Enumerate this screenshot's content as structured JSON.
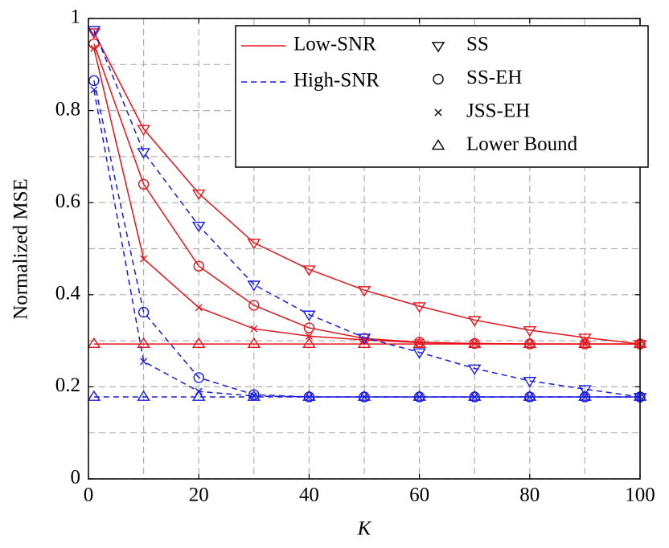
{
  "chart_data": {
    "type": "line",
    "xlabel": "K",
    "ylabel": "Normalized MSE",
    "x": [
      1,
      10,
      20,
      30,
      40,
      50,
      60,
      70,
      80,
      90,
      100
    ],
    "xlim": [
      0,
      100
    ],
    "ylim": [
      0,
      1
    ],
    "xticks": [
      0,
      20,
      40,
      60,
      80,
      100
    ],
    "yticks": [
      0,
      0.2,
      0.4,
      0.6,
      0.8,
      1
    ],
    "grid": true,
    "minor_xticks": [
      10,
      30,
      50,
      70,
      90
    ],
    "minor_yticks": [
      0.1,
      0.3,
      0.5,
      0.7,
      0.9
    ],
    "legend": {
      "lines": [
        {
          "name": "Low-SNR",
          "color": "#e8141b",
          "dashed": false
        },
        {
          "name": "High-SNR",
          "color": "#1a1ae6",
          "dashed": true
        }
      ],
      "markers": [
        {
          "name": "SS",
          "marker": "triangle-down"
        },
        {
          "name": "SS-EH",
          "marker": "circle"
        },
        {
          "name": "JSS-EH",
          "marker": "cross"
        },
        {
          "name": "Lower Bound",
          "marker": "triangle-up"
        }
      ]
    },
    "series": [
      {
        "line": 0,
        "marker": 3,
        "values": [
          0.293,
          0.293,
          0.293,
          0.293,
          0.293,
          0.293,
          0.293,
          0.293,
          0.293,
          0.293,
          0.293
        ]
      },
      {
        "line": 0,
        "marker": 0,
        "values": [
          0.97,
          0.76,
          0.62,
          0.513,
          0.455,
          0.41,
          0.375,
          0.345,
          0.323,
          0.307,
          0.293
        ]
      },
      {
        "line": 0,
        "marker": 1,
        "values": [
          0.945,
          0.64,
          0.462,
          0.377,
          0.328,
          0.305,
          0.297,
          0.294,
          0.293,
          0.293,
          0.293
        ]
      },
      {
        "line": 0,
        "marker": 2,
        "values": [
          0.935,
          0.478,
          0.372,
          0.326,
          0.31,
          0.302,
          0.296,
          0.294,
          0.293,
          0.293,
          0.293
        ]
      },
      {
        "line": 1,
        "marker": 3,
        "values": [
          0.178,
          0.178,
          0.178,
          0.178,
          0.178,
          0.178,
          0.178,
          0.178,
          0.178,
          0.178,
          0.178
        ]
      },
      {
        "line": 1,
        "marker": 0,
        "values": [
          0.975,
          0.71,
          0.55,
          0.422,
          0.357,
          0.307,
          0.275,
          0.24,
          0.213,
          0.195,
          0.178
        ]
      },
      {
        "line": 1,
        "marker": 1,
        "values": [
          0.865,
          0.362,
          0.22,
          0.183,
          0.178,
          0.178,
          0.178,
          0.178,
          0.178,
          0.178,
          0.178
        ]
      },
      {
        "line": 1,
        "marker": 2,
        "values": [
          0.845,
          0.255,
          0.19,
          0.18,
          0.178,
          0.178,
          0.178,
          0.178,
          0.178,
          0.178,
          0.178
        ]
      }
    ]
  }
}
